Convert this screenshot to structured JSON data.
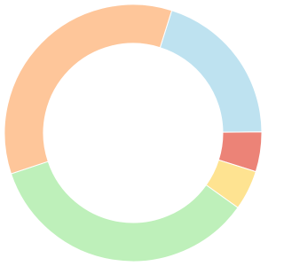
{
  "chart_data": {
    "type": "doughnut",
    "values": [
      20,
      5,
      5,
      35,
      35
    ],
    "colors": [
      "#bee2f0",
      "#ec8377",
      "#fee391",
      "#bef0ba",
      "#fec69a"
    ]
  }
}
